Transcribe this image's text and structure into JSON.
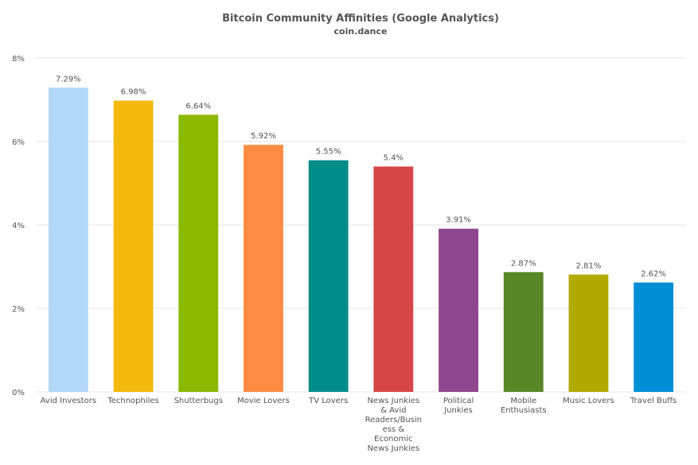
{
  "chart_data": {
    "type": "bar",
    "title": "Bitcoin Community Affinities (Google Analytics)",
    "subtitle": "coin.dance",
    "xlabel": "",
    "ylabel": "",
    "ylim": [
      0,
      8
    ],
    "yticks": [
      0,
      2,
      4,
      6,
      8
    ],
    "ytick_labels": [
      "0%",
      "2%",
      "4%",
      "6%",
      "8%"
    ],
    "grid": true,
    "legend": "none",
    "categories": [
      "Avid Investors",
      "Technophiles",
      "Shutterbugs",
      "Movie Lovers",
      "TV Lovers",
      "News Junkies & Avid Readers/Business & Economic News Junkies",
      "Political Junkies",
      "Mobile Enthusiasts",
      "Music Lovers",
      "Travel Buffs"
    ],
    "category_lines": [
      [
        "Avid Investors"
      ],
      [
        "Technophiles"
      ],
      [
        "Shutterbugs"
      ],
      [
        "Movie Lovers"
      ],
      [
        "TV Lovers"
      ],
      [
        "News Junkies",
        "& Avid",
        "Readers/Busin",
        "ess &",
        "Economic",
        "News Junkies"
      ],
      [
        "Political",
        "Junkies"
      ],
      [
        "Mobile",
        "Enthusiasts"
      ],
      [
        "Music Lovers"
      ],
      [
        "Travel Buffs"
      ]
    ],
    "values": [
      7.29,
      6.98,
      6.64,
      5.92,
      5.55,
      5.4,
      3.91,
      2.87,
      2.81,
      2.62
    ],
    "data_labels": [
      "7.29%",
      "6.98%",
      "6.64%",
      "5.92%",
      "5.55%",
      "5.4%",
      "3.91%",
      "2.87%",
      "2.81%",
      "2.62%"
    ],
    "colors": [
      "#b3d7f7",
      "#f4b90f",
      "#8cb800",
      "#ff8c42",
      "#008d88",
      "#d64646",
      "#8e468e",
      "#588727",
      "#b2aa00",
      "#008ed6"
    ]
  }
}
